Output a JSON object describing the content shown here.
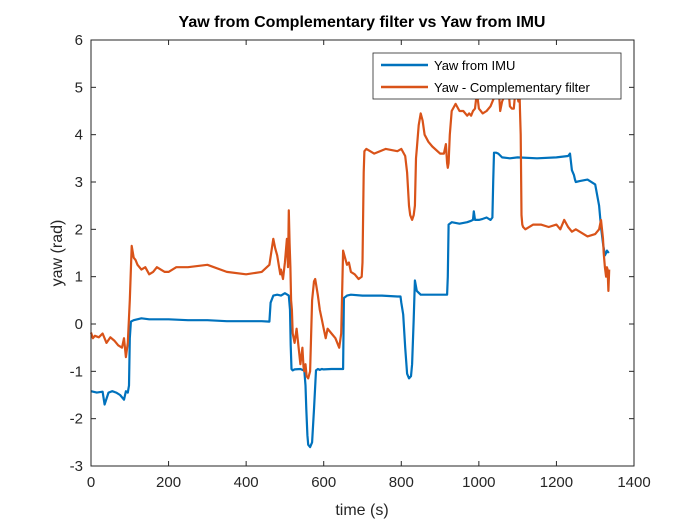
{
  "chart_data": {
    "type": "line",
    "title": "Yaw from Complementary filter vs Yaw from IMU",
    "xlabel": "time (s)",
    "ylabel": "yaw (rad)",
    "xlim": [
      0,
      1400
    ],
    "ylim": [
      -3,
      6
    ],
    "xticks": [
      "0",
      "200",
      "400",
      "600",
      "800",
      "1000",
      "1200",
      "1400"
    ],
    "yticks": [
      "-3",
      "-2",
      "-1",
      "0",
      "1",
      "2",
      "3",
      "4",
      "5",
      "6"
    ],
    "grid": false,
    "legend_position": "top-right",
    "series": [
      {
        "name": "Yaw from IMU",
        "color": "#0072BD",
        "x": [
          0,
          15,
          30,
          35,
          45,
          55,
          65,
          75,
          85,
          90,
          95,
          98,
          100,
          103,
          110,
          130,
          150,
          200,
          250,
          300,
          350,
          400,
          440,
          460,
          463,
          470,
          480,
          490,
          500,
          510,
          513,
          515,
          517,
          520,
          525,
          540,
          545,
          550,
          553,
          555,
          558,
          560,
          565,
          570,
          575,
          580,
          585,
          590,
          595,
          600,
          620,
          640,
          650,
          652,
          660,
          670,
          700,
          750,
          790,
          798,
          800,
          805,
          810,
          815,
          820,
          825,
          828,
          832,
          835,
          840,
          850,
          870,
          900,
          918,
          920,
          922,
          930,
          950,
          970,
          980,
          985,
          987,
          990,
          1000,
          1010,
          1020,
          1030,
          1035,
          1037,
          1039,
          1045,
          1050,
          1060,
          1080,
          1100,
          1150,
          1200,
          1230,
          1235,
          1240,
          1245,
          1248,
          1250,
          1260,
          1280,
          1300,
          1310,
          1315,
          1320,
          1325,
          1328,
          1330,
          1335
        ],
        "y": [
          -1.42,
          -1.45,
          -1.43,
          -1.7,
          -1.45,
          -1.42,
          -1.45,
          -1.5,
          -1.6,
          -1.42,
          -1.45,
          -1.3,
          -0.3,
          0.05,
          0.08,
          0.12,
          0.1,
          0.1,
          0.08,
          0.08,
          0.06,
          0.06,
          0.06,
          0.05,
          0.45,
          0.6,
          0.62,
          0.6,
          0.65,
          0.6,
          0.3,
          -0.45,
          -0.95,
          -0.98,
          -0.96,
          -0.95,
          -0.97,
          -0.98,
          -1.3,
          -1.8,
          -2.35,
          -2.55,
          -2.6,
          -2.5,
          -1.8,
          -0.98,
          -0.95,
          -0.97,
          -0.95,
          -0.96,
          -0.95,
          -0.95,
          -0.95,
          0.55,
          0.6,
          0.62,
          0.6,
          0.6,
          0.58,
          0.58,
          0.45,
          0.2,
          -0.5,
          -1.05,
          -1.15,
          -1.1,
          -0.85,
          0.1,
          0.92,
          0.7,
          0.62,
          0.62,
          0.62,
          0.62,
          1.0,
          2.1,
          2.15,
          2.12,
          2.15,
          2.18,
          2.2,
          2.38,
          2.2,
          2.2,
          2.22,
          2.25,
          2.2,
          2.25,
          3.0,
          3.62,
          3.62,
          3.6,
          3.52,
          3.5,
          3.52,
          3.5,
          3.52,
          3.55,
          3.6,
          3.25,
          3.15,
          3.05,
          3.0,
          3.02,
          3.05,
          2.95,
          2.5,
          2.05,
          1.7,
          1.45,
          1.5,
          1.55,
          1.5
        ]
      },
      {
        "name": "Yaw - Complementary filter",
        "color": "#D95319",
        "x": [
          0,
          5,
          10,
          20,
          30,
          40,
          50,
          60,
          70,
          80,
          85,
          90,
          95,
          100,
          105,
          110,
          115,
          120,
          130,
          140,
          150,
          160,
          170,
          180,
          190,
          200,
          220,
          250,
          300,
          350,
          400,
          440,
          460,
          470,
          475,
          480,
          485,
          488,
          490,
          495,
          500,
          505,
          508,
          510,
          512,
          514,
          516,
          518,
          520,
          525,
          530,
          540,
          545,
          548,
          550,
          553,
          556,
          560,
          565,
          570,
          575,
          578,
          580,
          585,
          590,
          595,
          600,
          605,
          610,
          620,
          630,
          640,
          645,
          650,
          655,
          660,
          665,
          670,
          680,
          690,
          698,
          700,
          703,
          705,
          710,
          730,
          760,
          790,
          800,
          810,
          815,
          820,
          823,
          828,
          832,
          835,
          838,
          840,
          845,
          850,
          855,
          860,
          870,
          880,
          900,
          910,
          915,
          918,
          920,
          922,
          925,
          930,
          940,
          950,
          960,
          970,
          975,
          980,
          985,
          990,
          995,
          1000,
          1010,
          1020,
          1030,
          1040,
          1045,
          1050,
          1055,
          1060,
          1065,
          1070,
          1075,
          1080,
          1085,
          1090,
          1095,
          1100,
          1102,
          1104,
          1106,
          1108,
          1110,
          1112,
          1114,
          1120,
          1140,
          1160,
          1180,
          1200,
          1210,
          1220,
          1230,
          1240,
          1250,
          1260,
          1280,
          1300,
          1310,
          1315,
          1320,
          1322,
          1325,
          1328,
          1330,
          1332,
          1334,
          1336
        ],
        "y": [
          -0.18,
          -0.3,
          -0.25,
          -0.28,
          -0.2,
          -0.4,
          -0.28,
          -0.35,
          -0.45,
          -0.5,
          -0.3,
          -0.7,
          -0.4,
          0.5,
          1.65,
          1.4,
          1.35,
          1.25,
          1.15,
          1.2,
          1.05,
          1.1,
          1.2,
          1.15,
          1.1,
          1.1,
          1.2,
          1.2,
          1.25,
          1.1,
          1.05,
          1.1,
          1.25,
          1.8,
          1.6,
          1.45,
          1.2,
          1.05,
          1.15,
          0.95,
          1.3,
          1.8,
          1.2,
          2.4,
          1.7,
          1.2,
          0.5,
          0.3,
          -0.2,
          -0.4,
          -0.1,
          -0.85,
          -0.5,
          -0.9,
          -1.0,
          -0.85,
          -1.1,
          -1.15,
          -1.0,
          0.5,
          0.9,
          0.95,
          0.85,
          0.6,
          0.3,
          0.1,
          -0.1,
          -0.3,
          -0.1,
          -0.2,
          -0.3,
          -0.5,
          -0.2,
          1.55,
          1.4,
          1.25,
          1.3,
          1.1,
          1.05,
          0.95,
          1.0,
          1.3,
          3.2,
          3.65,
          3.7,
          3.6,
          3.7,
          3.65,
          3.7,
          3.55,
          3.2,
          2.5,
          2.3,
          2.2,
          2.3,
          2.5,
          3.5,
          3.7,
          4.2,
          4.45,
          4.3,
          4.0,
          3.85,
          3.75,
          3.6,
          3.6,
          3.8,
          3.4,
          3.3,
          3.4,
          4.0,
          4.5,
          4.65,
          4.5,
          4.5,
          4.4,
          4.45,
          4.4,
          4.5,
          4.55,
          4.9,
          4.55,
          4.45,
          4.5,
          4.6,
          4.8,
          5.0,
          5.1,
          4.5,
          4.7,
          4.8,
          4.8,
          5.1,
          4.6,
          4.55,
          4.55,
          5.0,
          4.8,
          4.7,
          5.2,
          4.5,
          4.0,
          2.3,
          2.1,
          2.05,
          2.0,
          2.1,
          2.1,
          2.05,
          2.1,
          2.0,
          2.2,
          2.05,
          1.95,
          2.0,
          1.95,
          1.85,
          1.9,
          2.0,
          2.2,
          1.8,
          1.5,
          1.2,
          1.0,
          1.2,
          1.15,
          0.7,
          1.15
        ]
      }
    ]
  }
}
